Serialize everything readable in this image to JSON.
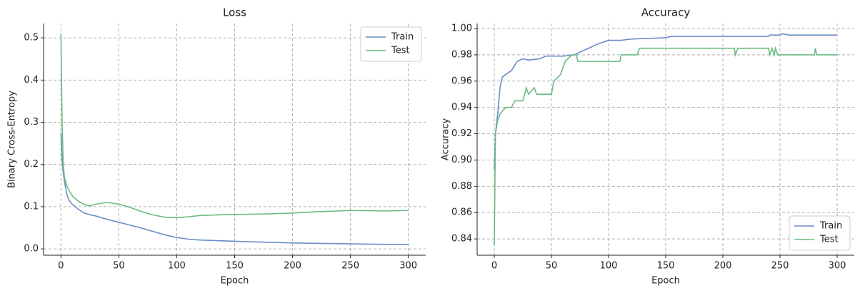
{
  "chart_data": [
    {
      "type": "line",
      "title": "Loss",
      "xlabel": "Epoch",
      "ylabel": "Binary Cross-Entropy",
      "xlim": [
        -15,
        315
      ],
      "ylim": [
        -0.015,
        0.534
      ],
      "xticks": [
        0,
        50,
        100,
        150,
        200,
        250,
        300
      ],
      "yticks": [
        {
          "value": 0,
          "label": "0.0"
        },
        0.1,
        0.2,
        0.3,
        0.4,
        0.5
      ],
      "grid": true,
      "legend": "upper right",
      "series": [
        {
          "name": "Train",
          "color": "#6a8cc7",
          "x": [
            0,
            1,
            2,
            3,
            5,
            7,
            10,
            15,
            20,
            25,
            30,
            40,
            50,
            60,
            70,
            80,
            90,
            100,
            110,
            120,
            150,
            200,
            250,
            300
          ],
          "values": [
            0.275,
            0.21,
            0.18,
            0.16,
            0.13,
            0.115,
            0.105,
            0.094,
            0.085,
            0.081,
            0.078,
            0.07,
            0.063,
            0.056,
            0.049,
            0.041,
            0.033,
            0.027,
            0.023,
            0.021,
            0.018,
            0.014,
            0.012,
            0.01
          ]
        },
        {
          "name": "Test",
          "color": "#6cbb7f",
          "x": [
            0,
            1,
            2,
            3,
            5,
            7,
            10,
            15,
            20,
            25,
            30,
            40,
            50,
            60,
            70,
            80,
            90,
            100,
            110,
            120,
            140,
            160,
            180,
            200,
            220,
            250,
            280,
            300
          ],
          "values": [
            0.51,
            0.3,
            0.2,
            0.17,
            0.15,
            0.138,
            0.125,
            0.113,
            0.105,
            0.102,
            0.106,
            0.11,
            0.106,
            0.098,
            0.088,
            0.08,
            0.075,
            0.074,
            0.076,
            0.079,
            0.081,
            0.082,
            0.083,
            0.085,
            0.088,
            0.091,
            0.09,
            0.091
          ]
        }
      ]
    },
    {
      "type": "line",
      "title": "Accuracy",
      "xlabel": "Epoch",
      "ylabel": "Accuracy",
      "xlim": [
        -15,
        315
      ],
      "ylim": [
        0.8276,
        1.0038
      ],
      "xticks": [
        0,
        50,
        100,
        150,
        200,
        250,
        300
      ],
      "yticks": [
        0.84,
        0.86,
        0.88,
        {
          "value": 0.9,
          "label": "0.90"
        },
        0.92,
        0.94,
        0.96,
        0.98,
        {
          "value": 1,
          "label": "1.00"
        }
      ],
      "grid": true,
      "legend": "lower right",
      "series": [
        {
          "name": "Train",
          "color": "#6a8cc7",
          "x": [
            0,
            1,
            3,
            5,
            7,
            10,
            15,
            20,
            25,
            30,
            40,
            45,
            60,
            70,
            80,
            90,
            100,
            110,
            120,
            150,
            155,
            200,
            240,
            241,
            250,
            252,
            258,
            300
          ],
          "values": [
            0.893,
            0.92,
            0.935,
            0.955,
            0.963,
            0.965,
            0.968,
            0.975,
            0.977,
            0.976,
            0.977,
            0.979,
            0.979,
            0.98,
            0.984,
            0.988,
            0.991,
            0.991,
            0.992,
            0.993,
            0.994,
            0.994,
            0.994,
            0.995,
            0.995,
            0.996,
            0.995,
            0.995
          ]
        },
        {
          "name": "Test",
          "color": "#6cbb7f",
          "x": [
            0,
            1,
            3,
            5,
            10,
            15,
            18,
            25,
            28,
            30,
            35,
            37,
            50,
            52,
            58,
            62,
            68,
            72,
            73,
            110,
            111,
            125,
            127,
            210,
            211,
            213,
            240,
            241,
            243,
            245,
            246,
            248,
            280,
            281,
            282,
            300
          ],
          "values": [
            0.835,
            0.92,
            0.93,
            0.935,
            0.94,
            0.94,
            0.945,
            0.945,
            0.955,
            0.95,
            0.955,
            0.95,
            0.95,
            0.96,
            0.965,
            0.975,
            0.98,
            0.98,
            0.975,
            0.975,
            0.98,
            0.98,
            0.985,
            0.985,
            0.98,
            0.985,
            0.985,
            0.98,
            0.985,
            0.98,
            0.985,
            0.98,
            0.98,
            0.985,
            0.98,
            0.98
          ]
        }
      ]
    }
  ]
}
